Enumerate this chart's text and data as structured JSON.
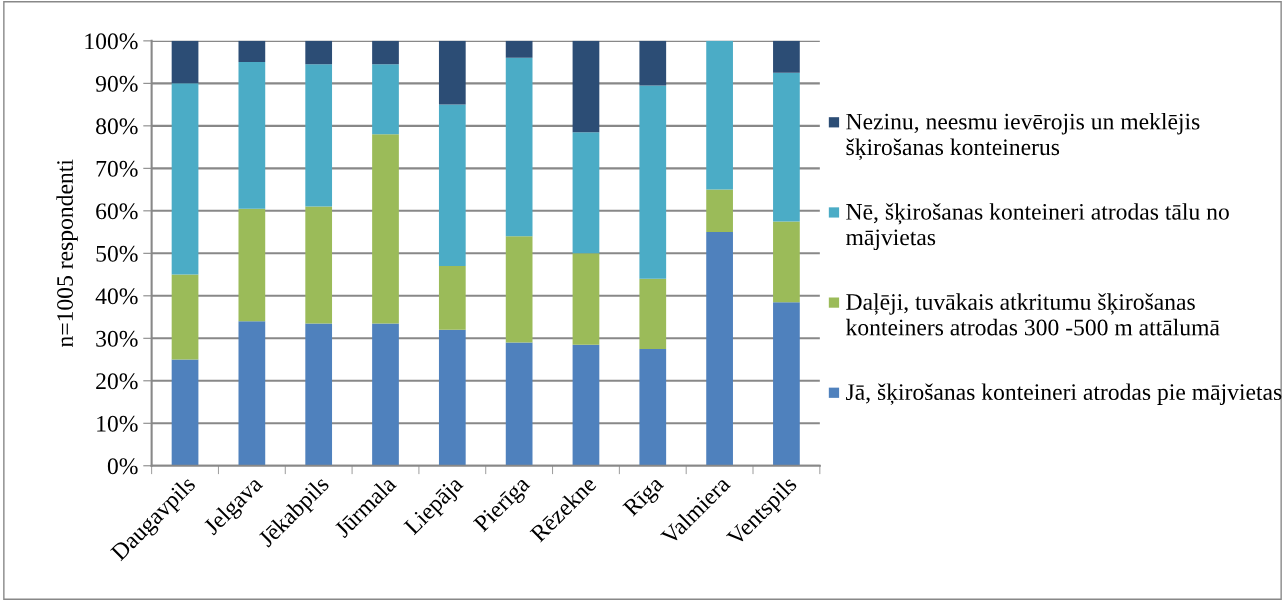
{
  "chart_data": {
    "type": "bar",
    "stacked": true,
    "ylabel": "n=1005 respondenti",
    "categories": [
      "Daugavpils",
      "Jelgava",
      "Jēkabpils",
      "Jūrmala",
      "Liepāja",
      "Pierīga",
      "Rēzekne",
      "Rīga",
      "Valmiera",
      "Ventspils"
    ],
    "series": [
      {
        "name": "Jā, šķirošanas konteineri atrodas pie mājvietas",
        "color": "#4f81bd",
        "values": [
          25,
          34,
          33.5,
          33.5,
          32,
          29,
          28.5,
          27.5,
          55,
          38.5
        ]
      },
      {
        "name": "Daļēji, tuvākais atkritumu šķirošanas konteiners atrodas 300 -500 m attālumā",
        "color": "#9bbb59",
        "values": [
          20,
          26.5,
          27.5,
          44.5,
          15,
          25,
          21.5,
          16.5,
          10,
          19
        ]
      },
      {
        "name": "Nē, šķirošanas konteineri atrodas tālu no mājvietas",
        "color": "#4bacc6",
        "values": [
          45,
          34.5,
          33.5,
          16.5,
          38,
          42,
          28.5,
          45.5,
          35,
          35
        ]
      },
      {
        "name": "Nezinu, neesmu ievērojis un meklējis šķirošanas konteinerus",
        "color": "#2c4d75",
        "values": [
          10,
          5,
          5.5,
          5.5,
          15,
          4,
          21.5,
          10.5,
          0,
          7.5
        ]
      }
    ],
    "ylim": [
      0,
      100
    ],
    "yticks": [
      {
        "value": 0,
        "label": "0%"
      },
      {
        "value": 10,
        "label": "10%"
      },
      {
        "value": 20,
        "label": "20%"
      },
      {
        "value": 30,
        "label": "30%"
      },
      {
        "value": 40,
        "label": "40%"
      },
      {
        "value": 50,
        "label": "50%"
      },
      {
        "value": 60,
        "label": "60%"
      },
      {
        "value": 70,
        "label": "70%"
      },
      {
        "value": 80,
        "label": "80%"
      },
      {
        "value": 90,
        "label": "90%"
      },
      {
        "value": 100,
        "label": "100%"
      }
    ],
    "grid": "y",
    "legend": "right"
  }
}
